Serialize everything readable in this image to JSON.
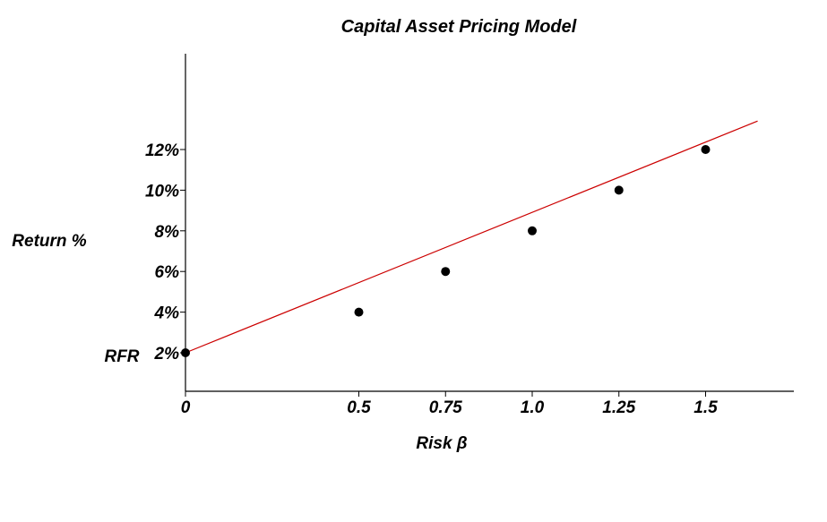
{
  "chart_data": {
    "type": "scatter",
    "title": "Capital Asset Pricing Model",
    "xlabel": "Risk β",
    "ylabel": "Return %",
    "rfr_label": "RFR",
    "x_ticks": [
      {
        "value": 0,
        "label": "0"
      },
      {
        "value": 0.5,
        "label": "0.5"
      },
      {
        "value": 0.75,
        "label": "0.75"
      },
      {
        "value": 1.0,
        "label": "1.0"
      },
      {
        "value": 1.25,
        "label": "1.25"
      },
      {
        "value": 1.5,
        "label": "1.5"
      }
    ],
    "y_ticks": [
      {
        "value": 2,
        "label": "2%"
      },
      {
        "value": 4,
        "label": "4%"
      },
      {
        "value": 6,
        "label": "6%"
      },
      {
        "value": 8,
        "label": "8%"
      },
      {
        "value": 10,
        "label": "10%"
      },
      {
        "value": 12,
        "label": "12%"
      }
    ],
    "points": [
      {
        "x": 0,
        "y": 2
      },
      {
        "x": 0.5,
        "y": 4
      },
      {
        "x": 0.75,
        "y": 6
      },
      {
        "x": 1.0,
        "y": 8
      },
      {
        "x": 1.25,
        "y": 10
      },
      {
        "x": 1.5,
        "y": 12
      }
    ],
    "line": {
      "x": [
        0,
        1.65
      ],
      "y": [
        2,
        13.4
      ],
      "color": "#cc0000"
    },
    "point_color": "#000000",
    "grid": false
  }
}
